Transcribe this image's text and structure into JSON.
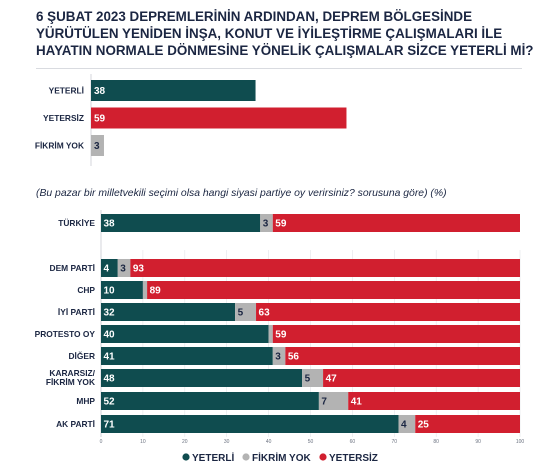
{
  "title_lines": [
    "6 ŞUBAT 2023 DEPREMLERİNİN ARDINDAN, DEPREM BÖLGESİNDE",
    "YÜRÜTÜLEN YENİDEN İNŞA, KONUT VE İYİLEŞTİRME ÇALIŞMALARI İLE",
    "HAYATIN NORMALE DÖNMESİNE YÖNELİK ÇALIŞMALAR SİZCE YETERLİ Mİ?"
  ],
  "subtitle": "(Bu pazar bir milletvekili seçimi olsa hangi siyasi partiye oy verirsiniz? sorusuna göre) (%)",
  "colors": {
    "yeterli": "#0f4c4f",
    "fikrim_yok": "#b3b3b3",
    "yetersiz": "#d11f2f",
    "background_bar": "#ececec"
  },
  "chart_data": [
    {
      "type": "bar",
      "orientation": "horizontal",
      "categories": [
        "YETERLİ",
        "YETERSİZ",
        "FİKRİM YOK"
      ],
      "values": [
        38,
        59,
        3
      ],
      "xlim": [
        0,
        100
      ]
    },
    {
      "type": "bar",
      "orientation": "horizontal",
      "stacked": true,
      "categories": [
        "TÜRKİYE",
        "DEM PARTİ",
        "CHP",
        "İYİ PARTİ",
        "PROTESTO OY",
        "DİĞER",
        "KARARSIZ/ FİKRİM YOK",
        "MHP",
        "AK PARTİ"
      ],
      "series": [
        {
          "name": "YETERLİ",
          "values": [
            38,
            4,
            10,
            32,
            40,
            41,
            48,
            52,
            71
          ]
        },
        {
          "name": "FİKRİM YOK",
          "values": [
            3,
            3,
            1,
            5,
            1,
            3,
            5,
            7,
            4
          ]
        },
        {
          "name": "YETERSİZ",
          "values": [
            59,
            93,
            89,
            63,
            59,
            56,
            47,
            41,
            25
          ]
        }
      ],
      "value_labels": {
        "YETERLİ": [
          "38",
          "4",
          "10",
          "32",
          "40",
          "41",
          "48",
          "52",
          "71"
        ],
        "FİKRİM YOK": [
          "3",
          "3",
          "",
          "5",
          "",
          "3",
          "5",
          "7",
          "4"
        ],
        "YETERSİZ": [
          "59",
          "93",
          "89",
          "63",
          "59",
          "56",
          "47",
          "41",
          "25"
        ]
      },
      "xticks": [
        "0",
        "10",
        "20",
        "30",
        "40",
        "50",
        "60",
        "70",
        "80",
        "90",
        "100"
      ],
      "xlim": [
        0,
        100
      ],
      "grid": true,
      "legend": "bottom"
    }
  ]
}
